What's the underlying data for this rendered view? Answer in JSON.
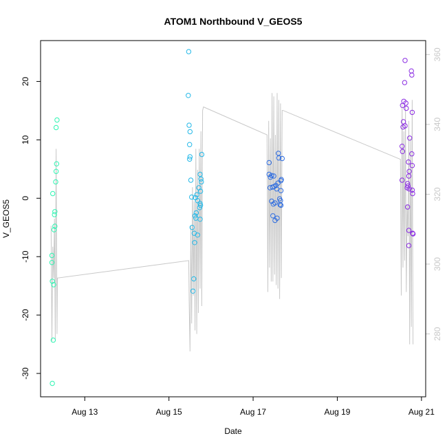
{
  "chart_data": {
    "type": "scatter",
    "title": "ATOM1 Northbound V_GEOS5",
    "xlabel": "Date",
    "ylabel": "V_GEOS5",
    "x_axis": {
      "ticks": [
        {
          "label": "Aug 13",
          "value": 13
        },
        {
          "label": "Aug 15",
          "value": 15
        },
        {
          "label": "Aug 17",
          "value": 17
        },
        {
          "label": "Aug 19",
          "value": 19
        },
        {
          "label": "Aug 21",
          "value": 21
        }
      ],
      "range": [
        11.95,
        21.1
      ]
    },
    "y_axis": {
      "ticks": [
        "-30",
        "-20",
        "-10",
        "0",
        "10",
        "20"
      ],
      "tick_values": [
        -30,
        -20,
        -10,
        0,
        10,
        20
      ],
      "range": [
        -34,
        27
      ]
    },
    "y2_axis": {
      "ticks": [
        "280",
        "300",
        "320",
        "340",
        "360"
      ],
      "tick_values": [
        280,
        300,
        320,
        340,
        360
      ],
      "range": [
        262,
        364
      ],
      "color": "#c8c8c8"
    },
    "grid": false,
    "points": [
      {
        "x": 12.23,
        "y": -31.7,
        "c": "#2ef5b2"
      },
      {
        "x": 12.25,
        "y": -24.3,
        "c": "#2ef5b2"
      },
      {
        "x": 12.23,
        "y": -14.2,
        "c": "#2ef5b2"
      },
      {
        "x": 12.26,
        "y": -14.8,
        "c": "#2ef5b2"
      },
      {
        "x": 12.22,
        "y": -11.0,
        "c": "#2ef5b2"
      },
      {
        "x": 12.22,
        "y": -9.8,
        "c": "#2ef5b2"
      },
      {
        "x": 12.27,
        "y": -5.4,
        "c": "#2ef5b2"
      },
      {
        "x": 12.29,
        "y": -4.8,
        "c": "#2ef5b2"
      },
      {
        "x": 12.28,
        "y": -2.8,
        "c": "#2ef5b2"
      },
      {
        "x": 12.29,
        "y": -2.3,
        "c": "#2ef5b2"
      },
      {
        "x": 12.24,
        "y": 0.8,
        "c": "#2ef5b2"
      },
      {
        "x": 12.31,
        "y": 2.8,
        "c": "#2ef5b2"
      },
      {
        "x": 12.32,
        "y": 4.6,
        "c": "#2ef5b2"
      },
      {
        "x": 12.33,
        "y": 5.9,
        "c": "#2ef5b2"
      },
      {
        "x": 12.32,
        "y": 12.1,
        "c": "#2ef5b2"
      },
      {
        "x": 12.34,
        "y": 13.4,
        "c": "#2ef5b2"
      },
      {
        "x": 15.47,
        "y": 25.1,
        "c": "#22b8e8"
      },
      {
        "x": 15.46,
        "y": 17.6,
        "c": "#22b8e8"
      },
      {
        "x": 15.48,
        "y": 12.5,
        "c": "#22b8e8"
      },
      {
        "x": 15.5,
        "y": 11.4,
        "c": "#22b8e8"
      },
      {
        "x": 15.49,
        "y": 9.2,
        "c": "#22b8e8"
      },
      {
        "x": 15.78,
        "y": 7.5,
        "c": "#22b8e8"
      },
      {
        "x": 15.5,
        "y": 7.1,
        "c": "#22b8e8"
      },
      {
        "x": 15.49,
        "y": 6.7,
        "c": "#22b8e8"
      },
      {
        "x": 15.74,
        "y": 4.1,
        "c": "#22b8e8"
      },
      {
        "x": 15.76,
        "y": 3.3,
        "c": "#22b8e8"
      },
      {
        "x": 15.52,
        "y": 3.1,
        "c": "#22b8e8"
      },
      {
        "x": 15.77,
        "y": 2.8,
        "c": "#22b8e8"
      },
      {
        "x": 15.71,
        "y": 1.8,
        "c": "#22b8e8"
      },
      {
        "x": 15.75,
        "y": 1.2,
        "c": "#22b8e8"
      },
      {
        "x": 15.66,
        "y": 0.6,
        "c": "#22b8e8"
      },
      {
        "x": 15.54,
        "y": 0.2,
        "c": "#22b8e8"
      },
      {
        "x": 15.63,
        "y": 0.1,
        "c": "#22b8e8"
      },
      {
        "x": 15.68,
        "y": -0.4,
        "c": "#22b8e8"
      },
      {
        "x": 15.74,
        "y": -0.9,
        "c": "#22b8e8"
      },
      {
        "x": 15.75,
        "y": -1.2,
        "c": "#22b8e8"
      },
      {
        "x": 15.73,
        "y": -1.6,
        "c": "#22b8e8"
      },
      {
        "x": 15.65,
        "y": -2.5,
        "c": "#22b8e8"
      },
      {
        "x": 15.62,
        "y": -3.0,
        "c": "#22b8e8"
      },
      {
        "x": 15.64,
        "y": -3.4,
        "c": "#22b8e8"
      },
      {
        "x": 15.74,
        "y": -3.6,
        "c": "#22b8e8"
      },
      {
        "x": 15.55,
        "y": -5.0,
        "c": "#22b8e8"
      },
      {
        "x": 15.6,
        "y": -6.0,
        "c": "#22b8e8"
      },
      {
        "x": 15.68,
        "y": -6.3,
        "c": "#22b8e8"
      },
      {
        "x": 15.61,
        "y": -7.6,
        "c": "#22b8e8"
      },
      {
        "x": 15.59,
        "y": -13.8,
        "c": "#22b8e8"
      },
      {
        "x": 15.57,
        "y": -15.9,
        "c": "#22b8e8"
      },
      {
        "x": 17.6,
        "y": 7.7,
        "c": "#2c6be0"
      },
      {
        "x": 17.61,
        "y": 6.9,
        "c": "#2c6be0"
      },
      {
        "x": 17.69,
        "y": 6.8,
        "c": "#2c6be0"
      },
      {
        "x": 17.38,
        "y": 6.1,
        "c": "#2c6be0"
      },
      {
        "x": 17.38,
        "y": 4.1,
        "c": "#2c6be0"
      },
      {
        "x": 17.44,
        "y": 3.9,
        "c": "#2c6be0"
      },
      {
        "x": 17.49,
        "y": 3.8,
        "c": "#2c6be0"
      },
      {
        "x": 17.41,
        "y": 3.6,
        "c": "#2c6be0"
      },
      {
        "x": 17.67,
        "y": 3.2,
        "c": "#2c6be0"
      },
      {
        "x": 17.66,
        "y": 3.0,
        "c": "#2c6be0"
      },
      {
        "x": 17.59,
        "y": 2.6,
        "c": "#2c6be0"
      },
      {
        "x": 17.54,
        "y": 2.2,
        "c": "#2c6be0"
      },
      {
        "x": 17.5,
        "y": 2.0,
        "c": "#2c6be0"
      },
      {
        "x": 17.46,
        "y": 1.9,
        "c": "#2c6be0"
      },
      {
        "x": 17.4,
        "y": 1.8,
        "c": "#2c6be0"
      },
      {
        "x": 17.56,
        "y": 1.6,
        "c": "#2c6be0"
      },
      {
        "x": 17.66,
        "y": 1.3,
        "c": "#2c6be0"
      },
      {
        "x": 17.63,
        "y": -0.1,
        "c": "#2c6be0"
      },
      {
        "x": 17.65,
        "y": -0.4,
        "c": "#2c6be0"
      },
      {
        "x": 17.44,
        "y": -0.5,
        "c": "#2c6be0"
      },
      {
        "x": 17.52,
        "y": -0.8,
        "c": "#2c6be0"
      },
      {
        "x": 17.48,
        "y": -1.0,
        "c": "#2c6be0"
      },
      {
        "x": 17.64,
        "y": -1.1,
        "c": "#2c6be0"
      },
      {
        "x": 17.66,
        "y": -1.2,
        "c": "#2c6be0"
      },
      {
        "x": 17.47,
        "y": -3.0,
        "c": "#2c6be0"
      },
      {
        "x": 17.57,
        "y": -3.4,
        "c": "#2c6be0"
      },
      {
        "x": 17.52,
        "y": -3.8,
        "c": "#2c6be0"
      },
      {
        "x": 20.61,
        "y": 23.6,
        "c": "#8a2be2"
      },
      {
        "x": 20.76,
        "y": 21.8,
        "c": "#8a2be2"
      },
      {
        "x": 20.77,
        "y": 21.1,
        "c": "#8a2be2"
      },
      {
        "x": 20.6,
        "y": 19.8,
        "c": "#8a2be2"
      },
      {
        "x": 20.58,
        "y": 16.6,
        "c": "#8a2be2"
      },
      {
        "x": 20.63,
        "y": 16.3,
        "c": "#8a2be2"
      },
      {
        "x": 20.55,
        "y": 15.9,
        "c": "#8a2be2"
      },
      {
        "x": 20.64,
        "y": 15.4,
        "c": "#8a2be2"
      },
      {
        "x": 20.78,
        "y": 14.7,
        "c": "#8a2be2"
      },
      {
        "x": 20.57,
        "y": 13.1,
        "c": "#8a2be2"
      },
      {
        "x": 20.61,
        "y": 12.4,
        "c": "#8a2be2"
      },
      {
        "x": 20.56,
        "y": 12.2,
        "c": "#8a2be2"
      },
      {
        "x": 20.72,
        "y": 10.3,
        "c": "#8a2be2"
      },
      {
        "x": 20.54,
        "y": 8.9,
        "c": "#8a2be2"
      },
      {
        "x": 20.55,
        "y": 8.0,
        "c": "#8a2be2"
      },
      {
        "x": 20.77,
        "y": 7.6,
        "c": "#8a2be2"
      },
      {
        "x": 20.69,
        "y": 6.2,
        "c": "#8a2be2"
      },
      {
        "x": 20.78,
        "y": 5.6,
        "c": "#8a2be2"
      },
      {
        "x": 20.71,
        "y": 4.6,
        "c": "#8a2be2"
      },
      {
        "x": 20.7,
        "y": 3.8,
        "c": "#8a2be2"
      },
      {
        "x": 20.54,
        "y": 3.1,
        "c": "#8a2be2"
      },
      {
        "x": 20.67,
        "y": 2.5,
        "c": "#8a2be2"
      },
      {
        "x": 20.68,
        "y": 2.1,
        "c": "#8a2be2"
      },
      {
        "x": 20.66,
        "y": 1.8,
        "c": "#8a2be2"
      },
      {
        "x": 20.71,
        "y": 1.6,
        "c": "#8a2be2"
      },
      {
        "x": 20.78,
        "y": 1.4,
        "c": "#8a2be2"
      },
      {
        "x": 20.79,
        "y": 0.8,
        "c": "#8a2be2"
      },
      {
        "x": 20.67,
        "y": -1.5,
        "c": "#8a2be2"
      },
      {
        "x": 20.7,
        "y": -5.5,
        "c": "#8a2be2"
      },
      {
        "x": 20.79,
        "y": -6.0,
        "c": "#8a2be2"
      },
      {
        "x": 20.8,
        "y": -6.1,
        "c": "#8a2be2"
      },
      {
        "x": 20.7,
        "y": -8.1,
        "c": "#8a2be2"
      }
    ],
    "secondary_line": {
      "color": "#c8c8c8",
      "x": [
        12.2,
        12.22,
        12.24,
        12.26,
        12.28,
        12.3,
        12.32,
        12.34,
        12.35,
        15.47,
        15.48,
        15.5,
        15.52,
        15.54,
        15.56,
        15.58,
        15.6,
        15.62,
        15.64,
        15.66,
        15.68,
        15.7,
        15.72,
        15.74,
        15.76,
        15.78,
        15.8,
        15.82,
        17.33,
        17.35,
        17.37,
        17.39,
        17.41,
        17.43,
        17.45,
        17.47,
        17.49,
        17.51,
        17.53,
        17.55,
        17.57,
        17.59,
        17.61,
        17.63,
        17.65,
        17.67,
        17.69,
        17.71,
        20.5,
        20.52,
        20.54,
        20.56,
        20.58,
        20.6,
        20.62,
        20.64,
        20.66,
        20.68,
        20.7,
        20.72,
        20.74,
        20.76,
        20.78,
        20.8
      ],
      "y": [
        311,
        278,
        305,
        296,
        313,
        278,
        333,
        280,
        296,
        301,
        290,
        275,
        311,
        283,
        322,
        291,
        318,
        281,
        333,
        280,
        327,
        286,
        333,
        293,
        338,
        288,
        344,
        345,
        337,
        292,
        341,
        299,
        336,
        295,
        349,
        295,
        348,
        297,
        337,
        294,
        349,
        293,
        347,
        290,
        346,
        296,
        344,
        344,
        330,
        291,
        346,
        299,
        338,
        301,
        345,
        292,
        317,
        308,
        341,
        277,
        336,
        282,
        347,
        277
      ]
    }
  }
}
